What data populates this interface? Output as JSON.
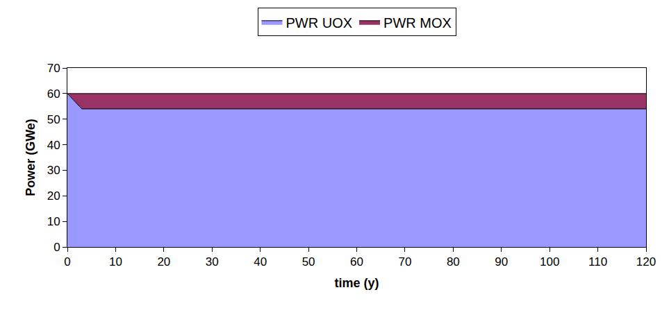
{
  "chart_data": {
    "type": "area",
    "stacked": true,
    "grid": false,
    "legend": "top",
    "x_label": "time (y)",
    "y_label": "Power (GWe)",
    "x": [
      0,
      3,
      120
    ],
    "series": [
      {
        "name": "PWR UOX",
        "color": "#9999ff",
        "values": [
          60,
          54,
          54
        ]
      },
      {
        "name": "PWR MOX",
        "color": "#993366",
        "values": [
          0,
          6,
          6
        ]
      }
    ],
    "xlim": [
      0,
      120
    ],
    "xticks": [
      0,
      10,
      20,
      30,
      40,
      50,
      60,
      70,
      80,
      90,
      100,
      110,
      120
    ],
    "ylim": [
      0,
      70
    ],
    "yticks": [
      0,
      10,
      20,
      30,
      40,
      50,
      60,
      70
    ]
  }
}
